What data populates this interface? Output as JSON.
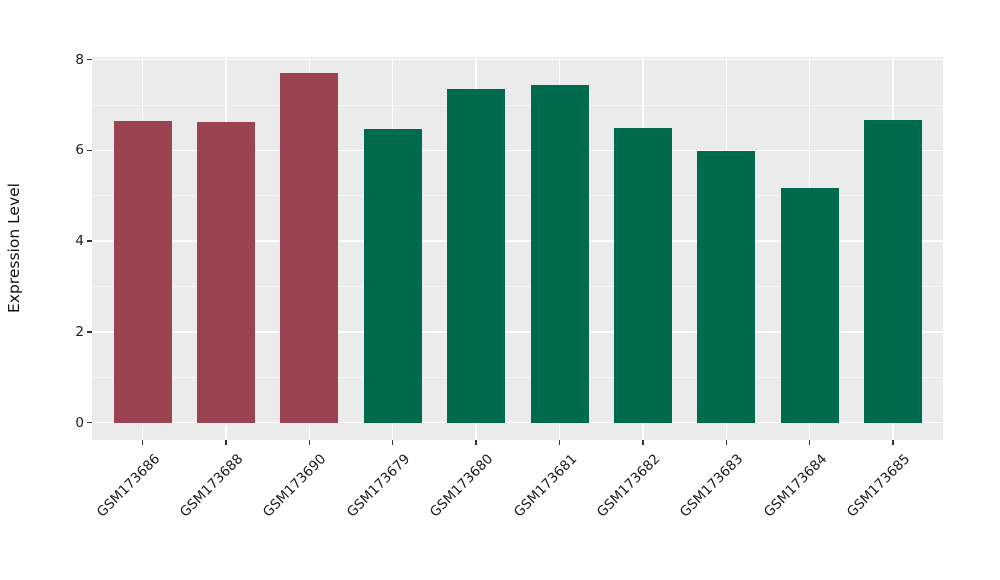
{
  "figure": {
    "background_color": "#ffffff",
    "panel_background_color": "#ebebeb",
    "grid_color": "#ffffff",
    "tick_color": "#333333",
    "text_color": "#1a1a1a"
  },
  "chart_data": {
    "type": "bar",
    "title": "",
    "xlabel": "",
    "ylabel": "Expression Level",
    "categories": [
      "GSM173686",
      "GSM173688",
      "GSM173690",
      "GSM173679",
      "GSM173680",
      "GSM173681",
      "GSM173682",
      "GSM173683",
      "GSM173684",
      "GSM173685"
    ],
    "values": [
      6.64,
      6.62,
      7.7,
      6.48,
      7.35,
      7.45,
      6.5,
      5.99,
      5.18,
      6.67
    ],
    "bar_colors": [
      "#9c4352",
      "#9c4352",
      "#9c4352",
      "#006a4e",
      "#006a4e",
      "#006a4e",
      "#006a4e",
      "#006a4e",
      "#006a4e",
      "#006a4e"
    ],
    "group_colors": {
      "maroon": "#9c4352",
      "green": "#006a4e"
    },
    "ylim": [
      0,
      8.07
    ],
    "y_major_ticks": [
      0,
      2,
      4,
      6,
      8
    ],
    "y_minor_ticks": [
      1,
      3,
      5,
      7
    ],
    "grid": true,
    "legend": "none",
    "x_tick_rotation": -45
  }
}
